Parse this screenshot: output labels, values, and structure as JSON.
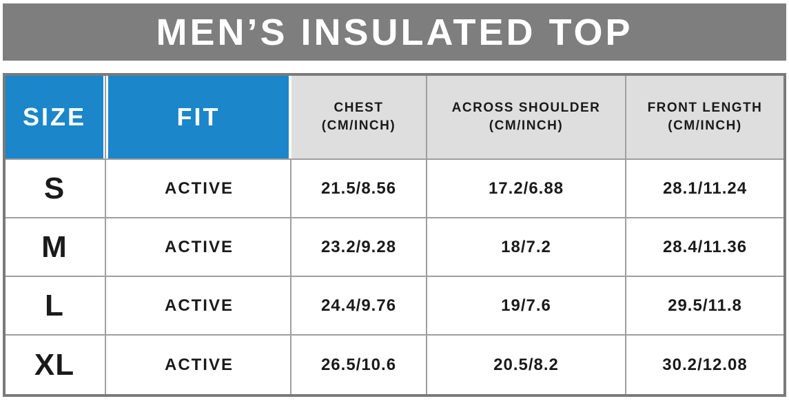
{
  "banner": {
    "title": "MEN’S INSULATED TOP"
  },
  "table": {
    "columns": [
      {
        "label": "SIZE",
        "sub": ""
      },
      {
        "label": "FIT",
        "sub": ""
      },
      {
        "label": "CHEST",
        "sub": "(CM/INCH)"
      },
      {
        "label": "ACROSS SHOULDER",
        "sub": "(CM/INCH)"
      },
      {
        "label": "FRONT LENGTH",
        "sub": "(CM/INCH)"
      }
    ],
    "rows": [
      {
        "size": "S",
        "fit": "ACTIVE",
        "chest": "21.5/8.56",
        "across_shoulder": "17.2/6.88",
        "front_length": "28.1/11.24"
      },
      {
        "size": "M",
        "fit": "ACTIVE",
        "chest": "23.2/9.28",
        "across_shoulder": "18/7.2",
        "front_length": "28.4/11.36"
      },
      {
        "size": "L",
        "fit": "ACTIVE",
        "chest": "24.4/9.76",
        "across_shoulder": "19/7.6",
        "front_length": "29.5/11.8"
      },
      {
        "size": "XL",
        "fit": "ACTIVE",
        "chest": "26.5/10.6",
        "across_shoulder": "20.5/8.2",
        "front_length": "30.2/12.08"
      }
    ]
  },
  "chart_data": {
    "type": "table",
    "title": "MEN’S INSULATED TOP",
    "columns": [
      "SIZE",
      "FIT",
      "CHEST (CM/INCH)",
      "ACROSS SHOULDER (CM/INCH)",
      "FRONT LENGTH (CM/INCH)"
    ],
    "rows": [
      [
        "S",
        "ACTIVE",
        "21.5/8.56",
        "17.2/6.88",
        "28.1/11.24"
      ],
      [
        "M",
        "ACTIVE",
        "23.2/9.28",
        "18/7.2",
        "28.4/11.36"
      ],
      [
        "L",
        "ACTIVE",
        "24.4/9.76",
        "19/7.6",
        "29.5/11.8"
      ],
      [
        "XL",
        "ACTIVE",
        "26.5/10.6",
        "20.5/8.2",
        "30.2/12.08"
      ]
    ]
  },
  "colors": {
    "banner_gray": "#7f7e7e",
    "header_blue": "#1b86c9",
    "header_gray": "#dedede",
    "border_gray": "#7a7a7a",
    "line_gray": "#9e9e9e",
    "text_dark": "#1a1a1a",
    "white": "#ffffff"
  }
}
